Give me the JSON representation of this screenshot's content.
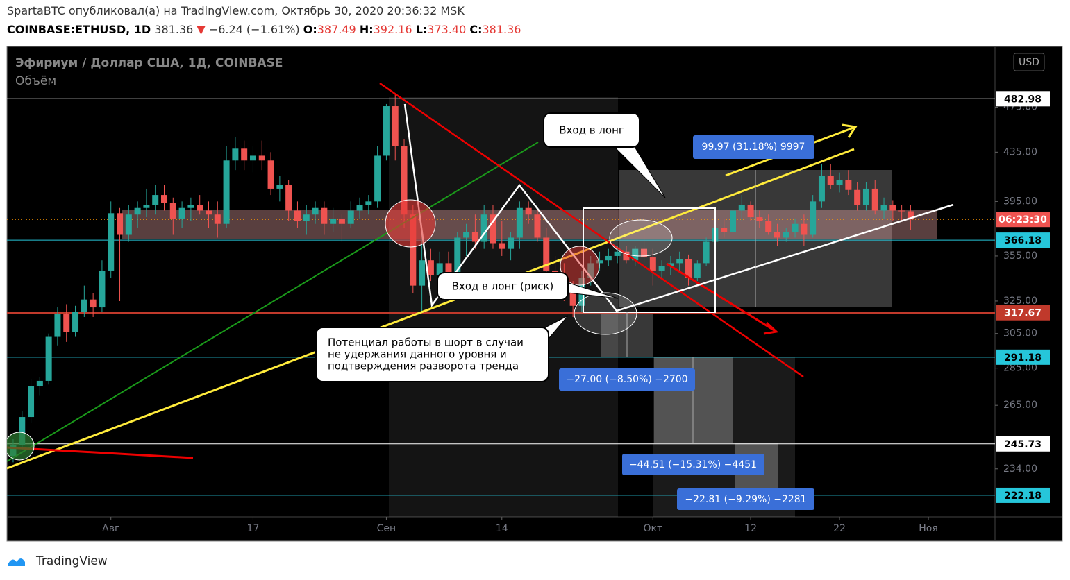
{
  "header": {
    "published": "SpartaBTC опубликовал(а) на TradingView.com, Октябрь 30, 2020 20:36:32 MSK",
    "symbol": "COINBASE:ETHUSD, 1D",
    "last": "381.36",
    "arrow": "▼",
    "change": "−6.24 (−1.61%)",
    "o_label": "O:",
    "o": "387.49",
    "h_label": "H:",
    "h": "392.16",
    "l_label": "L:",
    "l": "373.40",
    "c_label": "C:",
    "c": "381.36"
  },
  "chart_data": {
    "type": "candlestick",
    "title": "Эфириум / Доллар США, 1Д, COINBASE",
    "subtitle": "Объём",
    "currency": "USD",
    "yscale": "log",
    "ylim": [
      213,
      535
    ],
    "yticks": [
      {
        "value": 475,
        "label": "475.00"
      },
      {
        "value": 435,
        "label": "435.00"
      },
      {
        "value": 395,
        "label": "395.00"
      },
      {
        "value": 355,
        "label": "355.00"
      },
      {
        "value": 325,
        "label": "325.00"
      },
      {
        "value": 305,
        "label": "305.00"
      },
      {
        "value": 285,
        "label": "285.00"
      },
      {
        "value": 265,
        "label": "265.00"
      },
      {
        "value": 234,
        "label": "234.00"
      }
    ],
    "xlim": [
      -11.7,
      99.5
    ],
    "xticks": [
      {
        "value": 0,
        "label": "Авг"
      },
      {
        "value": 16,
        "label": "17"
      },
      {
        "value": 31,
        "label": "Сен"
      },
      {
        "value": 44,
        "label": "14"
      },
      {
        "value": 61,
        "label": "Окт"
      },
      {
        "value": 72,
        "label": "12"
      },
      {
        "value": 82,
        "label": "22"
      },
      {
        "value": 92,
        "label": "Ноя"
      }
    ],
    "up_color": "#26a69a",
    "down_color": "#ef5350",
    "x": [
      -11,
      -10,
      -9,
      -8,
      -7,
      -6,
      -5,
      -4,
      -3,
      -2,
      -1,
      0,
      1,
      2,
      3,
      4,
      5,
      6,
      7,
      8,
      9,
      10,
      11,
      12,
      13,
      14,
      15,
      16,
      17,
      18,
      19,
      20,
      21,
      22,
      23,
      24,
      25,
      26,
      27,
      28,
      29,
      30,
      31,
      32,
      33,
      34,
      35,
      36,
      37,
      38,
      39,
      40,
      41,
      42,
      43,
      44,
      45,
      46,
      47,
      48,
      49,
      50,
      51,
      52,
      53,
      54,
      55,
      56,
      57,
      58,
      59,
      60,
      61,
      62,
      63,
      64,
      65,
      66,
      67,
      68,
      69,
      70,
      71,
      72,
      73,
      74,
      75,
      76,
      77,
      78,
      79,
      80,
      81,
      82,
      83,
      84,
      85,
      86,
      87,
      88,
      89,
      90
    ],
    "open": [
      240,
      245,
      259,
      275,
      278,
      303,
      317,
      306,
      318,
      326,
      321,
      345,
      386,
      370,
      385,
      390,
      392,
      400,
      394,
      382,
      390,
      392,
      388,
      385,
      378,
      428,
      438,
      428,
      432,
      428,
      405,
      408,
      388,
      380,
      385,
      390,
      378,
      382,
      378,
      388,
      392,
      395,
      432,
      476,
      440,
      385,
      335,
      352,
      342,
      350,
      340,
      368,
      372,
      365,
      385,
      364,
      360,
      368,
      390,
      385,
      368,
      345,
      338,
      330,
      322,
      340,
      350,
      352,
      355,
      358,
      352,
      360,
      354,
      345,
      348,
      350,
      353,
      340,
      350,
      365,
      375,
      372,
      388,
      392,
      383,
      380,
      372,
      368,
      372,
      378,
      370,
      395,
      415,
      408,
      412,
      404,
      392,
      405,
      388,
      392,
      388,
      387.49
    ],
    "high": [
      248,
      262,
      279,
      280,
      305,
      321,
      323,
      322,
      335,
      330,
      352,
      395,
      390,
      392,
      395,
      405,
      408,
      408,
      398,
      395,
      398,
      400,
      395,
      395,
      440,
      448,
      445,
      440,
      445,
      435,
      415,
      412,
      395,
      392,
      395,
      395,
      390,
      385,
      395,
      398,
      400,
      440,
      478,
      488,
      446,
      392,
      375,
      360,
      358,
      358,
      372,
      378,
      385,
      392,
      392,
      380,
      372,
      395,
      395,
      390,
      375,
      355,
      350,
      338,
      345,
      355,
      358,
      360,
      362,
      362,
      362,
      372,
      360,
      352,
      355,
      358,
      356,
      352,
      368,
      378,
      382,
      392,
      400,
      395,
      388,
      385,
      378,
      375,
      382,
      385,
      400,
      425,
      425,
      418,
      420,
      410,
      410,
      412,
      398,
      396,
      392,
      392.16
    ],
    "low": [
      237,
      243,
      256,
      270,
      276,
      298,
      300,
      303,
      315,
      315,
      318,
      340,
      325,
      365,
      375,
      383,
      385,
      388,
      370,
      375,
      380,
      385,
      375,
      368,
      375,
      420,
      420,
      418,
      420,
      400,
      395,
      380,
      375,
      370,
      378,
      370,
      372,
      365,
      375,
      382,
      385,
      390,
      428,
      428,
      375,
      330,
      318,
      338,
      335,
      335,
      335,
      355,
      360,
      360,
      360,
      355,
      352,
      360,
      378,
      365,
      340,
      330,
      325,
      315,
      318,
      335,
      345,
      348,
      350,
      350,
      348,
      350,
      335,
      340,
      342,
      345,
      335,
      338,
      348,
      360,
      368,
      370,
      380,
      380,
      375,
      370,
      362,
      365,
      368,
      362,
      368,
      390,
      405,
      402,
      400,
      388,
      388,
      385,
      382,
      380,
      380,
      373.4
    ],
    "close": [
      245,
      259,
      275,
      278,
      303,
      317,
      306,
      318,
      326,
      321,
      345,
      386,
      370,
      385,
      390,
      392,
      400,
      394,
      382,
      390,
      392,
      388,
      385,
      378,
      428,
      438,
      428,
      432,
      428,
      405,
      408,
      388,
      380,
      385,
      390,
      378,
      382,
      378,
      388,
      392,
      395,
      432,
      476,
      440,
      385,
      335,
      352,
      342,
      350,
      340,
      368,
      372,
      365,
      385,
      364,
      360,
      368,
      390,
      385,
      368,
      345,
      338,
      330,
      322,
      340,
      350,
      352,
      355,
      358,
      352,
      360,
      354,
      345,
      348,
      350,
      353,
      340,
      350,
      365,
      375,
      372,
      388,
      392,
      383,
      380,
      372,
      368,
      372,
      378,
      370,
      395,
      415,
      408,
      412,
      404,
      392,
      405,
      388,
      392,
      388,
      387.6,
      381.36
    ],
    "price_lines": [
      {
        "value": 482.98,
        "color": "#ffffff",
        "text_color": "#000000"
      },
      {
        "value": 366.18,
        "color": "#26c6da",
        "text_color": "#000000"
      },
      {
        "value": 317.67,
        "color": "#c0392b",
        "text_color": "#ffffff"
      },
      {
        "value": 291.18,
        "color": "#26c6da",
        "text_color": "#000000"
      },
      {
        "value": 245.73,
        "color": "#ffffff",
        "text_color": "#000000"
      },
      {
        "value": 222.18,
        "color": "#26c6da",
        "text_color": "#000000"
      }
    ],
    "countdown": "06:23:30",
    "countdown_color": "#ef5350",
    "annotations": {
      "long_entry": "Вход в лонг",
      "long_entry_risk": "Вход в лонг (риск)",
      "short_note": [
        "Потенциал работы в шорт в случаи",
        "не удержания данного уровня и",
        "подтверждения разворота тренда"
      ],
      "measures": [
        "99.97 (31.18%) 9997",
        "−27.00 (−8.50%) −2700",
        "−44.51 (−15.31%) −4451",
        "−22.81 (−9.29%) −2281"
      ]
    }
  },
  "footer": {
    "brand": "TradingView"
  }
}
